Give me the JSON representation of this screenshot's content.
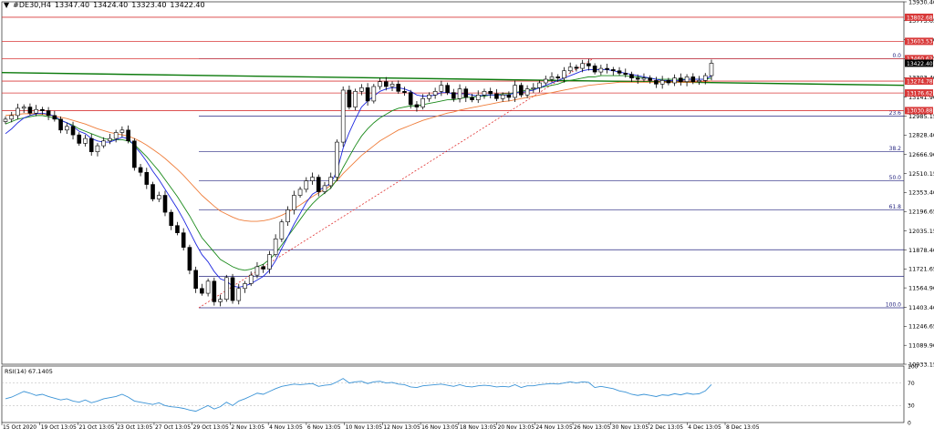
{
  "header": {
    "symbol": "#DE30,H4",
    "open": "13347.40",
    "high": "13424.40",
    "low": "13323.40",
    "close": "13422.40",
    "arrow_glyph": "▼"
  },
  "colors": {
    "bull_body": "#ffffff",
    "bear_body": "#000000",
    "candle_edge": "#000000",
    "ma_fast": "#1f28e0",
    "ma_mid": "#1a8a1a",
    "ma_slow": "#ef7d3a",
    "long_ma": "#0c7a0c",
    "resistance": "#d83838",
    "fib": "#262680",
    "trend": "#e03030",
    "rsi": "#3a93d6",
    "label_red_bg": "#d83838",
    "current_price_bg": "#000000"
  },
  "chart_data": {
    "type": "candlestick",
    "instrument": "#DE30",
    "timeframe": "H4",
    "price_axis_ticks": [
      "13930.40",
      "13773.65",
      "13616.90",
      "13460.15",
      "13303.40",
      "13141.90",
      "12985.15",
      "12828.40",
      "12666.90",
      "12510.15",
      "12353.40",
      "12196.65",
      "12035.15",
      "11878.40",
      "11721.65",
      "11564.90",
      "11403.40",
      "11246.65",
      "11089.90",
      "10933.15"
    ],
    "price_range": [
      10933.15,
      13930.4
    ],
    "time_labels": [
      "15 Oct 2020",
      "19 Oct 13:05",
      "21 Oct 13:05",
      "23 Oct 13:05",
      "27 Oct 13:05",
      "29 Oct 13:05",
      "2 Nov 13:05",
      "4 Nov 13:05",
      "6 Nov 13:05",
      "10 Nov 13:05",
      "12 Nov 13:05",
      "16 Nov 13:05",
      "18 Nov 13:05",
      "20 Nov 13:05",
      "24 Nov 13:05",
      "26 Nov 13:05",
      "30 Nov 13:05",
      "2 Dec 13:05",
      "4 Dec 13:05",
      "8 Dec 13:05"
    ],
    "closes": [
      12960,
      12990,
      13050,
      13060,
      13010,
      13040,
      13030,
      12990,
      12960,
      12870,
      12900,
      12830,
      12760,
      12800,
      12690,
      12740,
      12780,
      12800,
      12850,
      12870,
      12780,
      12560,
      12520,
      12420,
      12300,
      12330,
      12190,
      12080,
      12020,
      11900,
      11710,
      11560,
      11520,
      11620,
      11450,
      11470,
      11650,
      11460,
      11560,
      11600,
      11670,
      11740,
      11720,
      11840,
      11970,
      12110,
      12210,
      12330,
      12380,
      12450,
      12480,
      12360,
      12410,
      12480,
      12770,
      13200,
      13060,
      13190,
      13220,
      13110,
      13230,
      13270,
      13230,
      13250,
      13190,
      13180,
      13080,
      13060,
      13130,
      13160,
      13190,
      13240,
      13180,
      13130,
      13210,
      13140,
      13120,
      13160,
      13190,
      13170,
      13130,
      13160,
      13140,
      13240,
      13160,
      13210,
      13220,
      13260,
      13290,
      13310,
      13300,
      13360,
      13390,
      13380,
      13420,
      13400,
      13350,
      13380,
      13370,
      13360,
      13340,
      13330,
      13300,
      13290,
      13300,
      13280,
      13250,
      13280,
      13260,
      13300,
      13270,
      13310,
      13270,
      13280,
      13320,
      13422.4
    ],
    "opens_note": "",
    "ma_fast": [
      12840,
      12880,
      12930,
      12970,
      12990,
      13005,
      13010,
      13000,
      12985,
      12950,
      12930,
      12900,
      12860,
      12840,
      12800,
      12780,
      12770,
      12770,
      12790,
      12810,
      12800,
      12740,
      12680,
      12610,
      12530,
      12460,
      12380,
      12300,
      12220,
      12130,
      12030,
      11930,
      11840,
      11780,
      11700,
      11640,
      11620,
      11580,
      11570,
      11580,
      11600,
      11630,
      11660,
      11710,
      11790,
      11890,
      11990,
      12090,
      12180,
      12270,
      12340,
      12370,
      12400,
      12430,
      12530,
      12720,
      12850,
      12960,
      13060,
      13110,
      13150,
      13190,
      13210,
      13220,
      13220,
      13210,
      13190,
      13160,
      13150,
      13150,
      13160,
      13180,
      13180,
      13170,
      13170,
      13170,
      13160,
      13150,
      13160,
      13160,
      13160,
      13160,
      13160,
      13180,
      13180,
      13190,
      13200,
      13220,
      13240,
      13260,
      13280,
      13300,
      13320,
      13340,
      13360,
      13370,
      13370,
      13370,
      13370,
      13360,
      13350,
      13340,
      13330,
      13320,
      13310,
      13300,
      13290,
      13280,
      13280,
      13280,
      13280,
      13290,
      13290,
      13290,
      13290,
      13320
    ],
    "ma_mid": [
      12920,
      12940,
      12960,
      12970,
      12980,
      12990,
      12990,
      12980,
      12970,
      12950,
      12930,
      12910,
      12880,
      12860,
      12840,
      12820,
      12800,
      12790,
      12790,
      12790,
      12780,
      12750,
      12700,
      12650,
      12590,
      12530,
      12460,
      12390,
      12320,
      12240,
      12160,
      12070,
      11980,
      11920,
      11860,
      11800,
      11770,
      11740,
      11720,
      11710,
      11720,
      11740,
      11760,
      11800,
      11850,
      11920,
      11990,
      12060,
      12130,
      12200,
      12260,
      12310,
      12350,
      12390,
      12460,
      12560,
      12650,
      12740,
      12820,
      12880,
      12930,
      12970,
      13000,
      13030,
      13050,
      13060,
      13070,
      13070,
      13080,
      13090,
      13100,
      13110,
      13120,
      13120,
      13130,
      13140,
      13140,
      13150,
      13150,
      13160,
      13160,
      13170,
      13170,
      13180,
      13190,
      13200,
      13210,
      13220,
      13230,
      13240,
      13250,
      13270,
      13280,
      13290,
      13300,
      13310,
      13310,
      13320,
      13320,
      13320,
      13320,
      13320,
      13310,
      13310,
      13300,
      13300,
      13290,
      13290,
      13290,
      13290,
      13290,
      13290,
      13290,
      13290,
      13290,
      13300
    ],
    "ma_slow": [
      12990,
      12995,
      13000,
      13005,
      13005,
      13005,
      13000,
      12995,
      12985,
      12975,
      12965,
      12950,
      12935,
      12920,
      12900,
      12880,
      12865,
      12850,
      12840,
      12830,
      12820,
      12800,
      12775,
      12745,
      12710,
      12675,
      12635,
      12590,
      12545,
      12495,
      12440,
      12385,
      12330,
      12285,
      12240,
      12200,
      12175,
      12150,
      12130,
      12120,
      12115,
      12115,
      12120,
      12130,
      12145,
      12165,
      12190,
      12220,
      12250,
      12285,
      12320,
      12350,
      12380,
      12410,
      12450,
      12510,
      12560,
      12610,
      12660,
      12700,
      12740,
      12780,
      12810,
      12840,
      12870,
      12890,
      12910,
      12930,
      12950,
      12965,
      12980,
      12995,
      13010,
      13020,
      13035,
      13045,
      13055,
      13065,
      13075,
      13085,
      13095,
      13105,
      13110,
      13120,
      13130,
      13140,
      13150,
      13160,
      13170,
      13180,
      13190,
      13200,
      13210,
      13220,
      13230,
      13240,
      13245,
      13250,
      13255,
      13260,
      13265,
      13265,
      13265,
      13265,
      13265,
      13265,
      13265,
      13265,
      13265,
      13265,
      13265,
      13265,
      13265,
      13270,
      13270,
      13275
    ],
    "long_ma": {
      "from": 13345,
      "to": 13240
    },
    "resistance_levels": [
      {
        "value": "13802.68"
      },
      {
        "value": "13603.53"
      },
      {
        "value": "13460.62"
      },
      {
        "value": "13274.78"
      },
      {
        "value": "13176.62"
      },
      {
        "value": "13030.88"
      }
    ],
    "current_price": "13422.40",
    "fibonacci": [
      {
        "level": "0.0",
        "price": 13460.62
      },
      {
        "level": "23.6",
        "price": 12985.15
      },
      {
        "level": "38.2",
        "price": 12690.0
      },
      {
        "level": "50.0",
        "price": 12450.0
      },
      {
        "level": "61.8",
        "price": 12210.0
      },
      {
        "level": "",
        "price": 11880.0
      },
      {
        "level": "",
        "price": 11660.0
      },
      {
        "level": "100.0",
        "price": 11400.0
      }
    ],
    "trendline": {
      "from": 11400,
      "to": 13460
    },
    "rsi": {
      "label": "RSI(14) 67.1405",
      "ticks": [
        "100",
        "70",
        "30",
        "0"
      ],
      "range": [
        0,
        100
      ],
      "values": [
        42,
        45,
        50,
        55,
        52,
        48,
        50,
        46,
        43,
        40,
        42,
        38,
        36,
        40,
        35,
        38,
        42,
        44,
        46,
        50,
        45,
        38,
        36,
        34,
        32,
        35,
        30,
        28,
        27,
        25,
        22,
        20,
        25,
        30,
        24,
        28,
        36,
        30,
        38,
        42,
        47,
        52,
        50,
        55,
        60,
        64,
        66,
        68,
        67,
        68,
        69,
        64,
        66,
        67,
        72,
        78,
        70,
        72,
        73,
        69,
        72,
        73,
        70,
        71,
        68,
        67,
        63,
        62,
        65,
        66,
        67,
        68,
        66,
        64,
        67,
        64,
        63,
        65,
        66,
        65,
        63,
        64,
        63,
        67,
        62,
        65,
        65,
        67,
        68,
        69,
        68,
        70,
        72,
        70,
        72,
        71,
        62,
        64,
        62,
        60,
        56,
        54,
        50,
        48,
        50,
        48,
        46,
        49,
        48,
        51,
        49,
        52,
        50,
        51,
        56,
        67.14
      ]
    }
  }
}
